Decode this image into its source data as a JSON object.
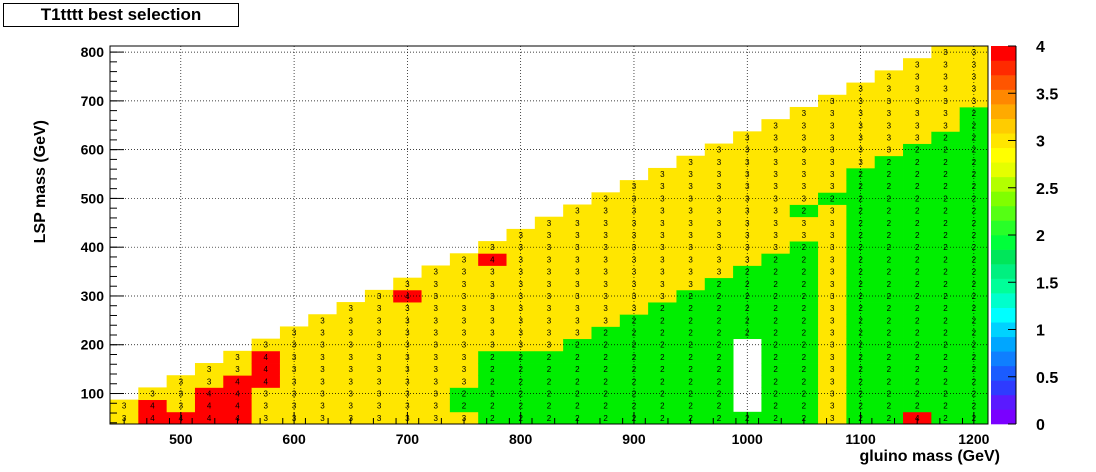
{
  "chart_data": {
    "type": "heatmap",
    "title": "T1tttt best selection",
    "xlabel": "gluino mass (GeV)",
    "ylabel": "LSP mass (GeV)",
    "xlim": [
      437.5,
      1212.5
    ],
    "ylim": [
      37.5,
      812.5
    ],
    "zlim": [
      0,
      4
    ],
    "cell_size": 25,
    "x_ticks": [
      500,
      600,
      700,
      800,
      900,
      1000,
      1100,
      1200
    ],
    "y_ticks": [
      100,
      200,
      300,
      400,
      500,
      600,
      700,
      800
    ],
    "z_ticks": [
      "0",
      "0.5",
      "1",
      "1.5",
      "2",
      "2.5",
      "3",
      "3.5",
      "4"
    ],
    "x_tick_labels": [
      "500",
      "600",
      "700",
      "800",
      "900",
      "1000",
      "1100",
      "1200"
    ],
    "y_tick_labels": [
      "100",
      "200",
      "300",
      "400",
      "500",
      "600",
      "700",
      "800"
    ],
    "grid": true,
    "empty_cells": [
      [
        1000,
        75
      ],
      [
        1000,
        100
      ],
      [
        1000,
        125
      ],
      [
        1000,
        150
      ],
      [
        1000,
        175
      ],
      [
        1000,
        200
      ]
    ],
    "red_cells": [
      [
        475,
        50
      ],
      [
        475,
        75
      ],
      [
        500,
        50
      ],
      [
        525,
        50
      ],
      [
        525,
        75
      ],
      [
        525,
        100
      ],
      [
        550,
        50
      ],
      [
        550,
        75
      ],
      [
        550,
        100
      ],
      [
        550,
        125
      ],
      [
        575,
        125
      ],
      [
        575,
        150
      ],
      [
        575,
        175
      ],
      [
        700,
        300
      ],
      [
        775,
        375
      ],
      [
        1150,
        50
      ]
    ],
    "yellow_exceptions": [
      [
        725,
        50
      ],
      [
        725,
        75
      ],
      [
        750,
        50
      ]
    ],
    "green_rule": "value 2 where y <= x - 650 (x from 750 to 1050); value 2 where y <= x - 550 (x from 1100), plus cells listed in extra_green",
    "extra_green": [
      [
        750,
        75
      ],
      [
        775,
        50
      ],
      [
        775,
        75
      ],
      [
        775,
        100
      ],
      [
        775,
        125
      ],
      [
        775,
        150
      ],
      [
        775,
        175
      ],
      [
        800,
        150
      ],
      [
        800,
        175
      ],
      [
        1050,
        475
      ],
      [
        1075,
        500
      ],
      [
        1100,
        525
      ],
      [
        1125,
        550
      ],
      [
        1150,
        575
      ],
      [
        1175,
        600
      ],
      [
        1175,
        625
      ],
      [
        1200,
        625
      ],
      [
        1200,
        650
      ],
      [
        1200,
        675
      ]
    ],
    "palette": [
      "#7a00ff",
      "#5a1aff",
      "#2e3bff",
      "#1a5cff",
      "#0f7fff",
      "#00a6ff",
      "#00d2ff",
      "#00ffff",
      "#00ffcc",
      "#00ff99",
      "#00f080",
      "#00e65a",
      "#00ff3a",
      "#28ff28",
      "#55ff14",
      "#80ff00",
      "#b3ff00",
      "#e5ff00",
      "#ffff00",
      "#ffe600",
      "#ffcc00",
      "#ffaa00",
      "#ff8800",
      "#ff5500",
      "#ff2a00",
      "#ff0000"
    ]
  }
}
